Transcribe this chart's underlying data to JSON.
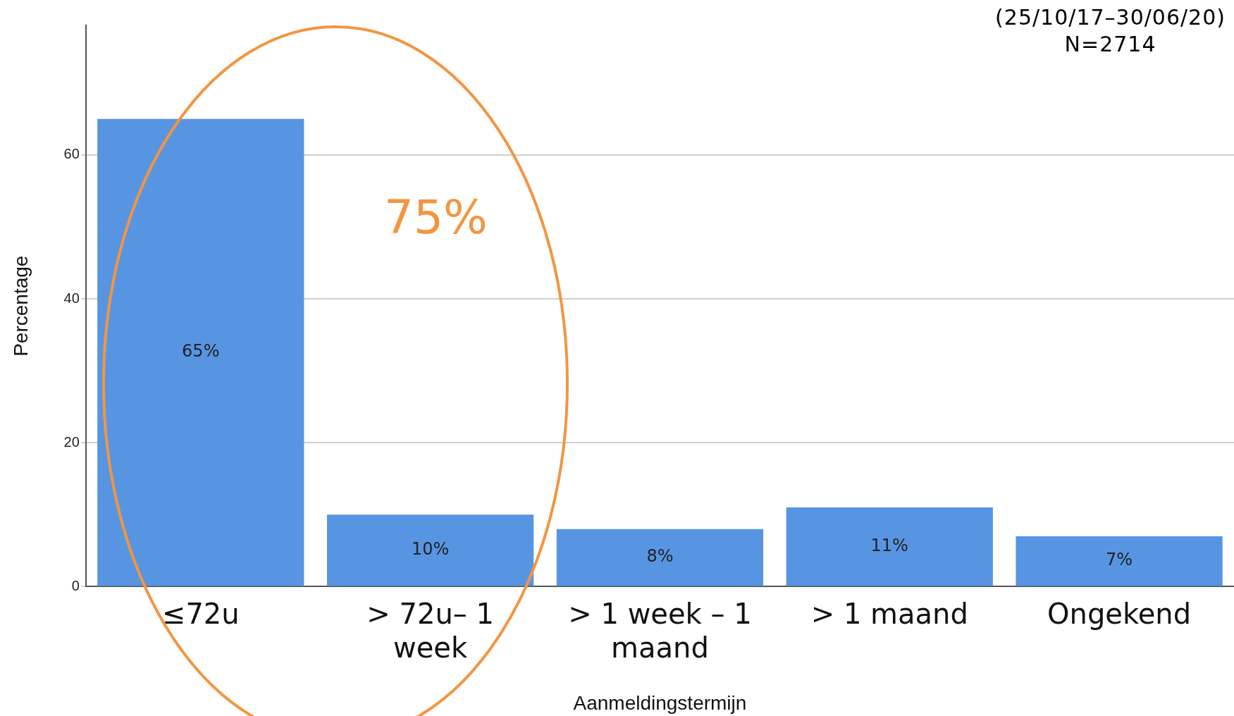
{
  "chart_data": {
    "type": "bar",
    "xlabel": "Aanmeldingstermijn",
    "ylabel": "Percentage",
    "categories": [
      "≤72u",
      "> 72u– 1 week",
      "> 1 week – 1 maand",
      "> 1 maand",
      "Ongekend"
    ],
    "values": [
      65,
      10,
      8,
      11,
      7
    ],
    "value_labels": [
      "65%",
      "10%",
      "8%",
      "11%",
      "7%"
    ],
    "color": "#5795e3",
    "ylim": [
      0,
      78
    ],
    "yticks": [
      0,
      20,
      40,
      60
    ],
    "grid": "y",
    "legend": false,
    "annotations": [
      "75%",
      "(25/10/17–30/06/20)",
      "N=2714"
    ]
  }
}
